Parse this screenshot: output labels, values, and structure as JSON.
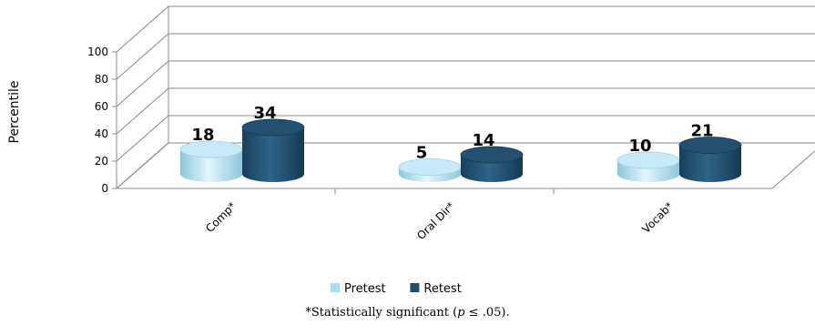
{
  "chart_data": {
    "type": "bar",
    "style": "3d-cylinder",
    "categories": [
      "Comp*",
      "Oral Dir*",
      "Vocab*"
    ],
    "series": [
      {
        "name": "Pretest",
        "values": [
          18,
          5,
          10
        ],
        "color": "#a9dcec"
      },
      {
        "name": "Retest",
        "values": [
          34,
          14,
          21
        ],
        "color": "#1f4e6e"
      }
    ],
    "ylabel": "Percentile",
    "yticks": [
      0,
      20,
      40,
      60,
      80,
      100
    ],
    "ylim": [
      0,
      100
    ],
    "grid": true,
    "legend_position": "bottom"
  },
  "footnote": {
    "prefix": "*Statistically significant (",
    "variable": "p",
    "suffix": " ≤ .05)."
  }
}
